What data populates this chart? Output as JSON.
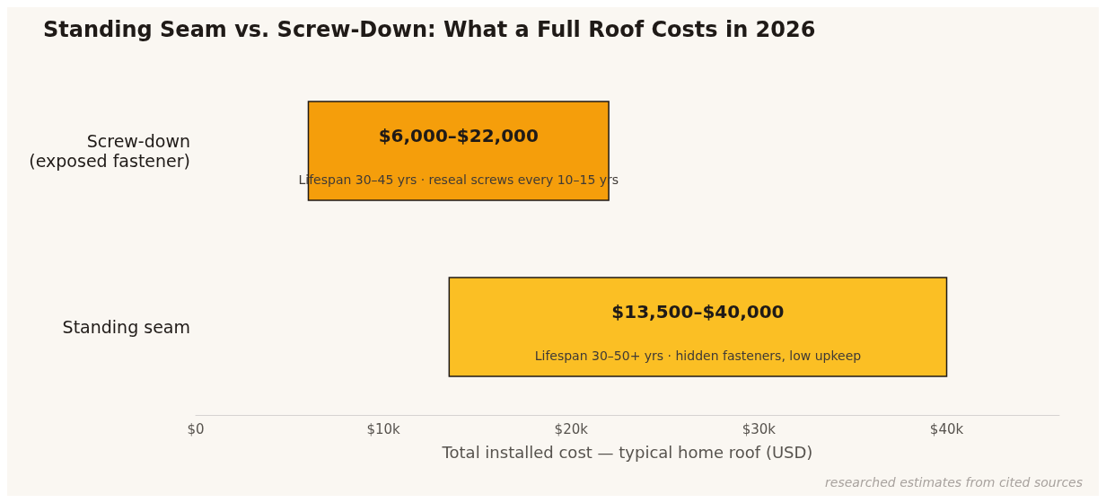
{
  "chart_data": {
    "type": "bar",
    "orientation": "horizontal",
    "title": "Standing Seam vs. Screw-Down: What a Full Roof Costs in 2026",
    "xlabel": "Total installed cost — typical home roof (USD)",
    "categories": [
      "Screw-down\n(exposed fastener)",
      "Standing seam"
    ],
    "base": [
      6000,
      13500
    ],
    "values": [
      16000,
      26500
    ],
    "colors": [
      "#f59e0b",
      "#fbbf24"
    ],
    "value_labels": [
      "$6,000–$22,000",
      "$13,500–$40,000"
    ],
    "xlim": [
      0,
      46000
    ],
    "xticks": [
      {
        "value": 0,
        "label": "$0"
      },
      {
        "value": 10000,
        "label": "$10k"
      },
      {
        "value": 20000,
        "label": "$20k"
      },
      {
        "value": 30000,
        "label": "$30k"
      },
      {
        "value": 40000,
        "label": "$40k"
      }
    ],
    "grid": false,
    "annotations": [
      "Lifespan 30–45 yrs · reseal screws every 10–15 yrs",
      "Lifespan 30–50+ yrs · hidden fasteners, low upkeep",
      "researched estimates from cited sources"
    ]
  }
}
